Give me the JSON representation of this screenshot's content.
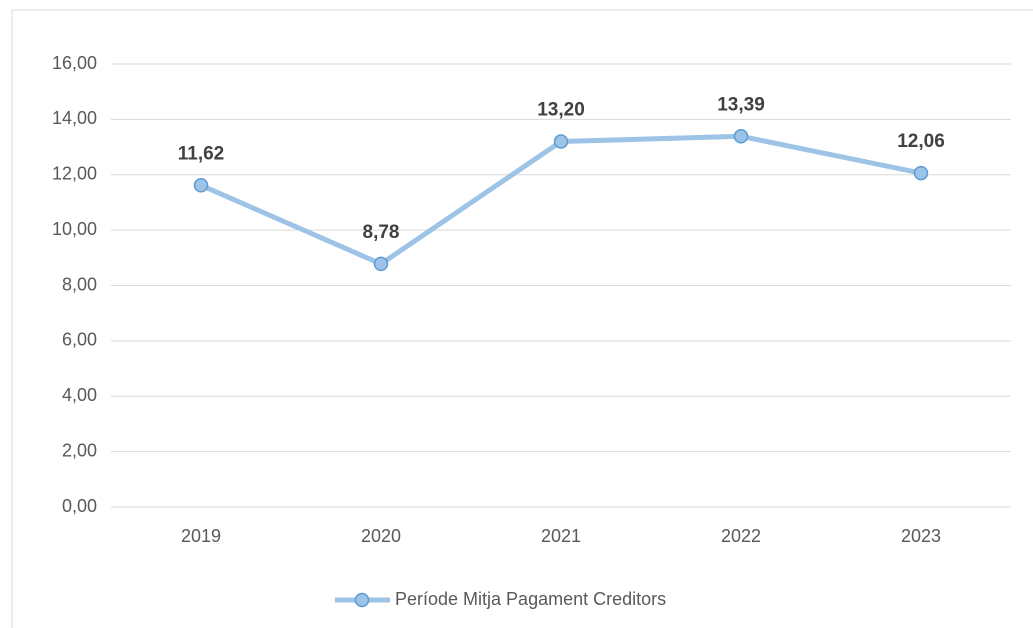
{
  "chart_data": {
    "type": "line",
    "categories": [
      "2019",
      "2020",
      "2021",
      "2022",
      "2023"
    ],
    "series": [
      {
        "name": "Període Mitja Pagament Creditors",
        "color": "#9dc3e6",
        "values": [
          11.62,
          8.78,
          13.2,
          13.39,
          12.06
        ],
        "value_labels": [
          "11,62",
          "8,78",
          "13,20",
          "13,39",
          "12,06"
        ]
      }
    ],
    "ylim": [
      0,
      16
    ],
    "yticks": [
      {
        "value": 0,
        "label": "0,00"
      },
      {
        "value": 2,
        "label": "2,00"
      },
      {
        "value": 4,
        "label": "4,00"
      },
      {
        "value": 6,
        "label": "6,00"
      },
      {
        "value": 8,
        "label": "8,00"
      },
      {
        "value": 10,
        "label": "10,00"
      },
      {
        "value": 12,
        "label": "12,00"
      },
      {
        "value": 14,
        "label": "14,00"
      },
      {
        "value": 16,
        "label": "16,00"
      }
    ],
    "grid": true,
    "legend": "bottom"
  }
}
